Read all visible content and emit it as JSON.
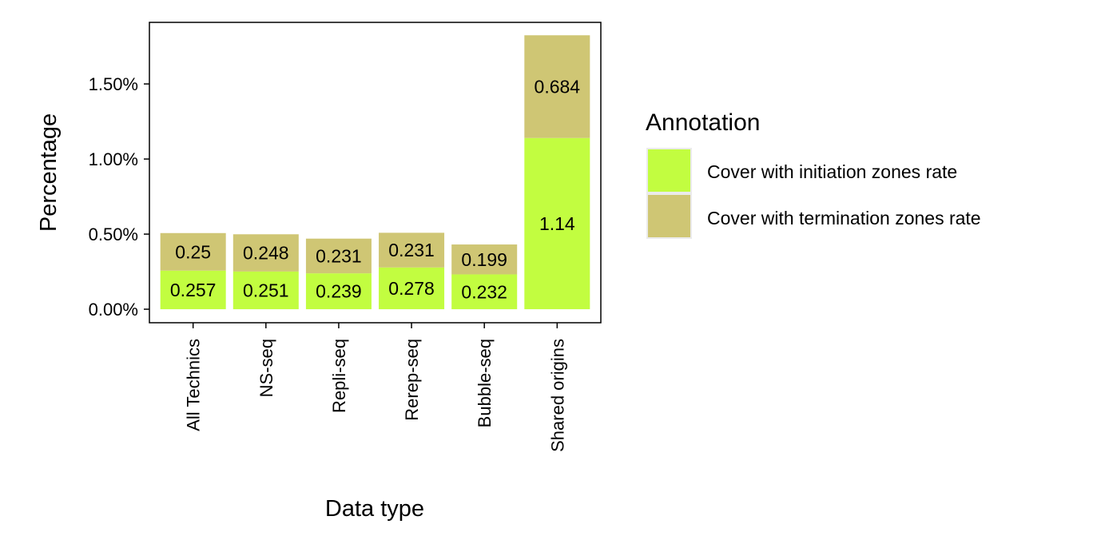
{
  "chart_data": {
    "type": "bar",
    "stacked": true,
    "categories": [
      "All Technics",
      "NS-seq",
      "Repli-seq",
      "Rerep-seq",
      "Bubble-seq",
      "Shared origins"
    ],
    "series": [
      {
        "name": "Cover with initiation zones rate",
        "values": [
          0.257,
          0.251,
          0.239,
          0.278,
          0.232,
          1.14
        ],
        "color": "#c2fd40"
      },
      {
        "name": "Cover with termination zones rate",
        "values": [
          0.25,
          0.248,
          0.231,
          0.231,
          0.199,
          0.684
        ],
        "color": "#cfc674"
      }
    ],
    "data_labels": {
      "initiation": [
        "0.257",
        "0.251",
        "0.239",
        "0.278",
        "0.232",
        "1.14"
      ],
      "termination": [
        "0.25",
        "0.248",
        "0.231",
        "0.231",
        "0.199",
        "0.684"
      ]
    },
    "xlabel": "Data type",
    "ylabel": "Percentage",
    "y_ticks": [
      0,
      0.5,
      1.0,
      1.5
    ],
    "y_tick_labels": [
      "0.00%",
      "0.50%",
      "1.00%",
      "1.50%"
    ],
    "ylim": [
      -0.09,
      1.91
    ],
    "legend": {
      "title": "Annotation",
      "position": "right",
      "entries": [
        "Cover with initiation zones rate",
        "Cover with termination zones rate"
      ]
    },
    "grid": false
  }
}
